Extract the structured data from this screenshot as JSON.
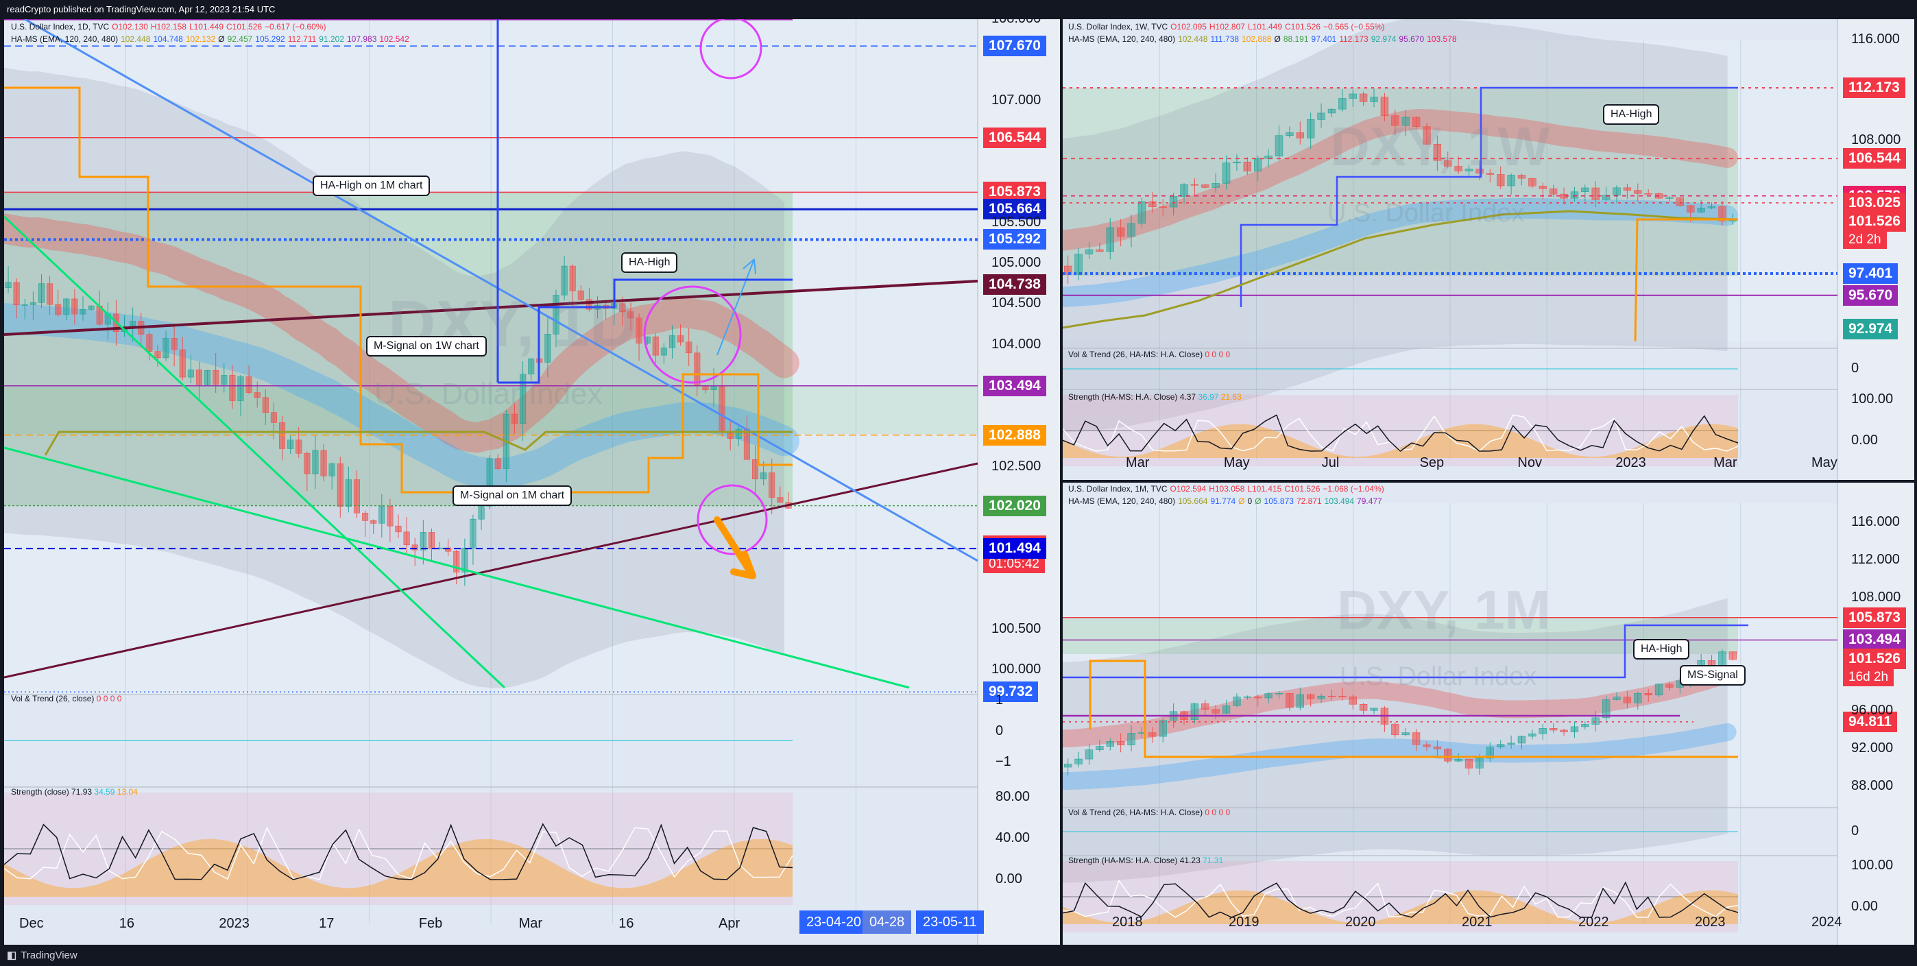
{
  "header": {
    "text": "readCrypto published on TradingView.com, Apr 12, 2023 21:54 UTC"
  },
  "footer": {
    "brand": "TradingView"
  },
  "left": {
    "legend1": [
      "U.S. Dollar Index, 1D, TVC",
      "O102.130",
      "H102.158",
      "L101.449",
      "C101.526",
      "−0.617 (−0.60%)"
    ],
    "legend2": [
      "HA-MS (EMA, 120, 240, 480)",
      "102.448",
      "104.748",
      "102.132",
      "Ø",
      "92.457",
      "105.292",
      "112.711",
      "91.202",
      "107.983",
      "102.542"
    ],
    "watermark": "DXY, 1D",
    "subtitle": "U.S. Dollar Index",
    "yticks": [
      "108.000",
      "107.000",
      "105.500",
      "105.000",
      "104.500",
      "104.000",
      "102.500",
      "100.500",
      "100.000"
    ],
    "price_tags": [
      {
        "value": "107.670",
        "color": "#2962ff"
      },
      {
        "value": "106.544",
        "color": "#f23645"
      },
      {
        "value": "105.873",
        "color": "#f23645"
      },
      {
        "value": "105.664",
        "color": "#0d1fcc"
      },
      {
        "value": "105.292",
        "color": "#2962ff"
      },
      {
        "value": "104.738",
        "color": "#6d1235"
      },
      {
        "value": "103.494",
        "color": "#9c27b0"
      },
      {
        "value": "102.888",
        "color": "#ff9800"
      },
      {
        "value": "102.020",
        "color": "#43a047"
      },
      {
        "value": "101.526",
        "color": "#f23645"
      },
      {
        "value": "101.494",
        "color": "#0000e0"
      },
      {
        "value": "99.732",
        "color": "#2962ff"
      }
    ],
    "countdown": "01:05:42",
    "callouts": [
      "HA-High on 1M chart",
      "HA-High",
      "M-Signal on 1W chart",
      "M-Signal on 1M chart"
    ],
    "xticks": [
      "Dec",
      "16",
      "2023",
      "17",
      "Feb",
      "Mar",
      "16",
      "Apr"
    ],
    "date_badges": [
      "23-04-20",
      "04-28",
      "23-05-11"
    ],
    "vol_label": "Vol & Trend (26, close)",
    "vol_values": "0  0  0  0",
    "vol_ticks": [
      "1",
      "0",
      "−1"
    ],
    "strength_label": "Strength (close)",
    "strength_values": [
      "71.93",
      "34.59",
      "13.04"
    ],
    "strength_ticks": [
      "80.00",
      "40.00",
      "0.00"
    ]
  },
  "right_top": {
    "legend1": [
      "U.S. Dollar Index, 1W, TVC",
      "O102.095",
      "H102.807",
      "L101.449",
      "C101.526",
      "−0.565 (−0.55%)"
    ],
    "legend2": [
      "HA-MS (EMA, 120, 240, 480)",
      "102.448",
      "111.738",
      "102.888",
      "Ø",
      "88.191",
      "97.401",
      "112.173",
      "92.974",
      "95.670",
      "103.578"
    ],
    "watermark": "DXY, 1W",
    "subtitle": "U.S. Dollar Index",
    "yticks": [
      "116.000",
      "108.000"
    ],
    "price_tags": [
      {
        "value": "112.173",
        "color": "#f23645"
      },
      {
        "value": "106.544",
        "color": "#f23645"
      },
      {
        "value": "103.578",
        "color": "#e91e63"
      },
      {
        "value": "103.025",
        "color": "#f23645"
      },
      {
        "value": "101.526",
        "color": "#f23645"
      },
      {
        "value": "97.401",
        "color": "#2962ff"
      },
      {
        "value": "95.670",
        "color": "#9c27b0"
      },
      {
        "value": "92.974",
        "color": "#26a69a"
      }
    ],
    "countdown": "2d 2h",
    "callouts": [
      "HA-High"
    ],
    "xticks": [
      "Mar",
      "May",
      "Jul",
      "Sep",
      "Nov",
      "2023",
      "Mar",
      "May"
    ],
    "vol_label": "Vol & Trend (26, HA-MS: H.A. Close)",
    "vol_values": "0  0  0  0",
    "vol_ticks": [
      "0"
    ],
    "strength_label": "Strength (HA-MS: H.A. Close)",
    "strength_values": [
      "4.37",
      "36.97",
      "21.63"
    ],
    "strength_ticks": [
      "100.00",
      "0.00"
    ]
  },
  "right_bottom": {
    "legend1": [
      "U.S. Dollar Index, 1M, TVC",
      "O102.594",
      "H103.058",
      "L101.415",
      "C101.526",
      "−1.068 (−1.04%)"
    ],
    "legend2": [
      "HA-MS (EMA, 120, 240, 480)",
      "105.664",
      "91.774",
      "Ø",
      "0",
      "Ø",
      "105.873",
      "72.871",
      "103.494",
      "79.477"
    ],
    "watermark": "DXY, 1M",
    "subtitle": "U.S. Dollar Index",
    "yticks": [
      "116.000",
      "112.000",
      "108.000",
      "96.000",
      "92.000",
      "88.000"
    ],
    "price_tags": [
      {
        "value": "105.873",
        "color": "#f23645"
      },
      {
        "value": "103.494",
        "color": "#9c27b0"
      },
      {
        "value": "101.526",
        "color": "#f23645"
      },
      {
        "value": "94.811",
        "color": "#f23645"
      }
    ],
    "countdown": "16d 2h",
    "callouts": [
      "HA-High",
      "MS-Signal"
    ],
    "xticks": [
      "2018",
      "2019",
      "2020",
      "2021",
      "2022",
      "2023",
      "2024"
    ],
    "vol_label": "Vol & Trend (26, HA-MS: H.A. Close)",
    "vol_values": "0  0  0  0",
    "vol_ticks": [
      "0"
    ],
    "strength_label": "Strength (HA-MS: H.A. Close)",
    "strength_values": [
      "41.23",
      "71.31"
    ],
    "strength_ticks": [
      "100.00",
      "0.00"
    ]
  },
  "chart_data": [
    {
      "type": "candlestick",
      "title": "U.S. Dollar Index, 1D, TVC",
      "timeframe": "1D",
      "x_range": [
        "Dec 2022",
        "May 2023"
      ],
      "ylim": [
        99.7,
        108.0
      ],
      "last_close": 101.526,
      "ohlc_last": {
        "open": 102.13,
        "high": 102.158,
        "low": 101.449,
        "close": 101.526
      },
      "close_path": [
        {
          "x": "Dec",
          "y": 104.7
        },
        {
          "x": "16",
          "y": 104.2
        },
        {
          "x": "2023",
          "y": 103.5
        },
        {
          "x": "17",
          "y": 102.2
        },
        {
          "x": "Feb",
          "y": 101.3
        },
        {
          "x": "Mar",
          "y": 104.8
        },
        {
          "x": "16",
          "y": 103.9
        },
        {
          "x": "Apr",
          "y": 102.0
        }
      ],
      "levels": [
        107.67,
        106.544,
        105.873,
        105.664,
        105.292,
        104.738,
        103.494,
        102.888,
        102.02,
        101.526,
        101.494,
        99.732
      ]
    },
    {
      "type": "candlestick",
      "title": "U.S. Dollar Index, 1W, TVC",
      "timeframe": "1W",
      "x_range": [
        "Feb 2022",
        "May 2023"
      ],
      "ylim": [
        92.0,
        116.0
      ],
      "last_close": 101.526,
      "ohlc_last": {
        "open": 102.095,
        "high": 102.807,
        "low": 101.449,
        "close": 101.526
      },
      "close_path": [
        {
          "x": "Mar",
          "y": 98.0
        },
        {
          "x": "May",
          "y": 103.5
        },
        {
          "x": "Jul",
          "y": 106.5
        },
        {
          "x": "Sep",
          "y": 112.0
        },
        {
          "x": "Nov",
          "y": 106.5
        },
        {
          "x": "2023",
          "y": 103.5
        },
        {
          "x": "Mar",
          "y": 104.5
        },
        {
          "x": "May",
          "y": 101.5
        }
      ],
      "levels": [
        112.173,
        106.544,
        103.578,
        103.025,
        101.526,
        97.401,
        95.67,
        92.974
      ]
    },
    {
      "type": "candlestick",
      "title": "U.S. Dollar Index, 1M, TVC",
      "timeframe": "1M",
      "x_range": [
        "2017",
        "2024"
      ],
      "ylim": [
        86.0,
        118.0
      ],
      "last_close": 101.526,
      "ohlc_last": {
        "open": 102.594,
        "high": 103.058,
        "low": 101.415,
        "close": 101.526
      },
      "close_path": [
        {
          "x": "2018",
          "y": 90.0
        },
        {
          "x": "2019",
          "y": 96.5
        },
        {
          "x": "2020",
          "y": 97.5
        },
        {
          "x": "2021",
          "y": 90.5
        },
        {
          "x": "2022",
          "y": 96.0
        },
        {
          "x": "2023",
          "y": 102.0
        }
      ],
      "levels": [
        105.873,
        103.494,
        101.526,
        94.811
      ]
    }
  ]
}
